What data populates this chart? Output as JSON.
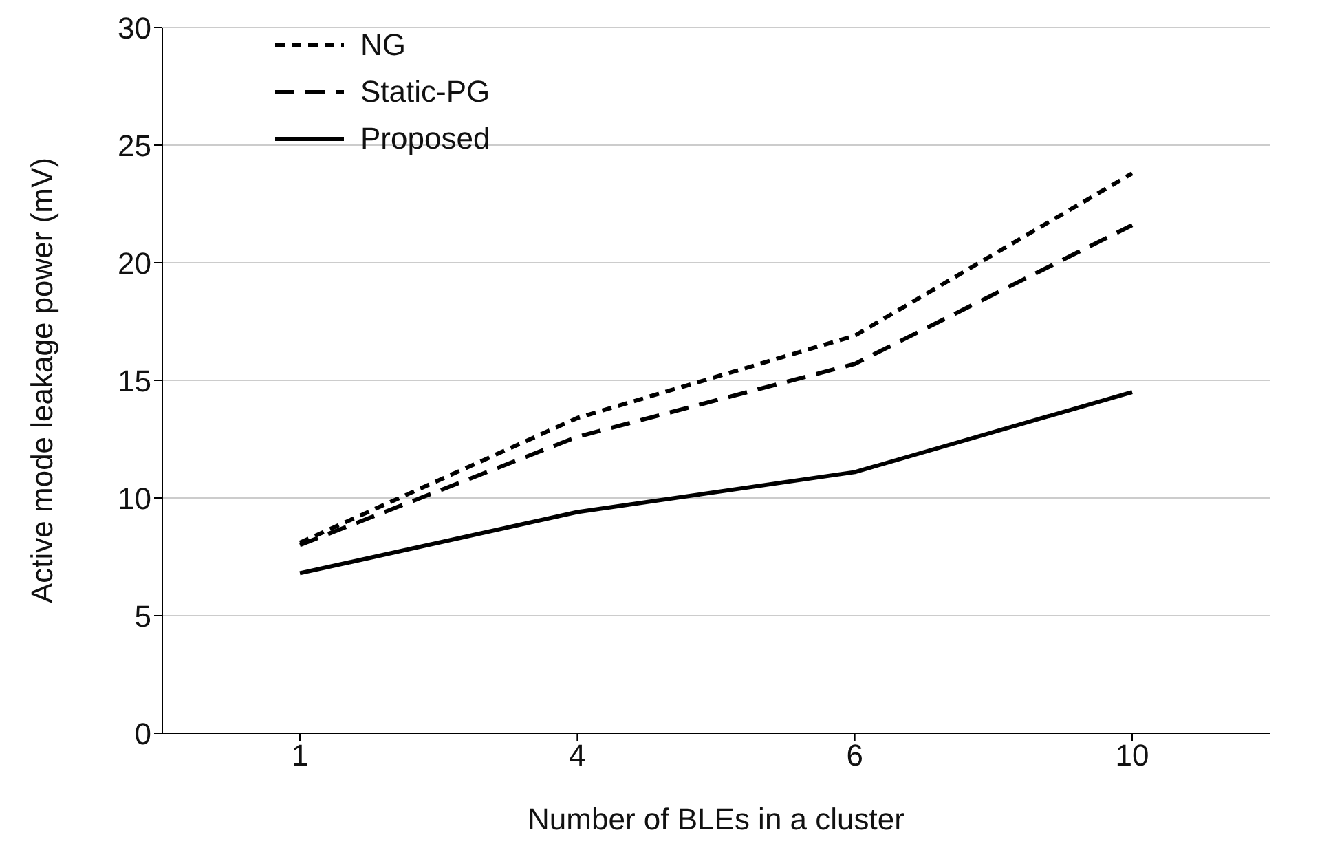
{
  "chart_data": {
    "type": "line",
    "xlabel": "Number of BLEs in a cluster",
    "ylabel": "Active mode leakage power (mV)",
    "categories": [
      "1",
      "4",
      "6",
      "10"
    ],
    "series": [
      {
        "name": "NG",
        "color": "#000000",
        "line_style": "dotted",
        "values": [
          8.1,
          13.4,
          16.9,
          23.8
        ]
      },
      {
        "name": "Static-PG",
        "color": "#000000",
        "line_style": "dashed",
        "values": [
          8.0,
          12.6,
          15.7,
          21.6
        ]
      },
      {
        "name": "Proposed",
        "color": "#000000",
        "line_style": "solid",
        "values": [
          6.8,
          9.4,
          11.1,
          14.5
        ]
      }
    ],
    "ylim": [
      0,
      30
    ],
    "yticks": [
      0,
      5,
      10,
      15,
      20,
      25,
      30
    ],
    "grid": "y",
    "legend": "top left",
    "marker": "none"
  }
}
